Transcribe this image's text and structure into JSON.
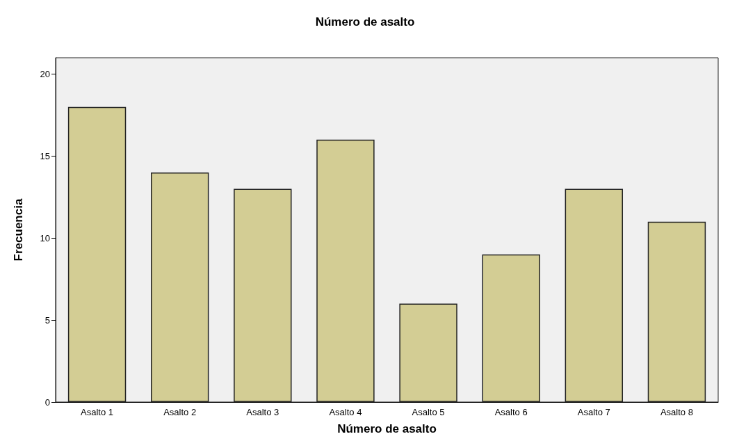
{
  "chart_data": {
    "type": "bar",
    "title": "Número de asalto",
    "xlabel": "Número de asalto",
    "ylabel": "Frecuencia",
    "categories": [
      "Asalto 1",
      "Asalto 2",
      "Asalto 3",
      "Asalto 4",
      "Asalto 5",
      "Asalto 6",
      "Asalto 7",
      "Asalto 8"
    ],
    "values": [
      18,
      14,
      13,
      16,
      6,
      9,
      13,
      11
    ],
    "color": "#d3cd94",
    "ylim": [
      0,
      21
    ],
    "yticks": [
      0,
      5,
      10,
      15,
      20
    ],
    "grid": false
  }
}
